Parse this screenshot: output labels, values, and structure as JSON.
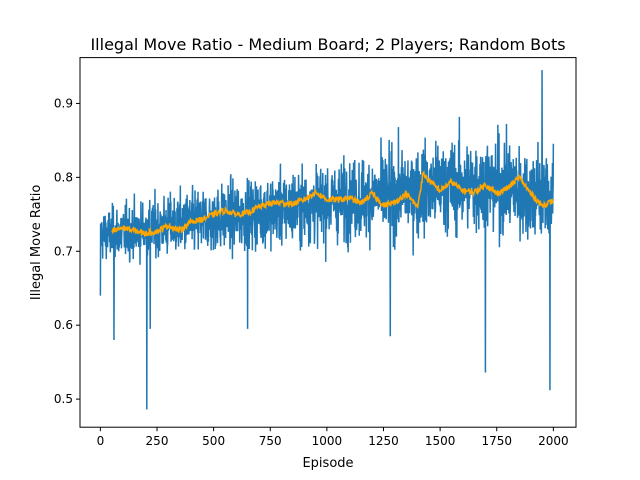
{
  "chart_data": {
    "type": "line",
    "title": "Illegal Move Ratio - Medium Board; 2 Players; Random Bots",
    "xlabel": "Episode",
    "ylabel": "Illegal Move Ratio",
    "xlim": [
      -90,
      2100
    ],
    "ylim": [
      0.462,
      0.962
    ],
    "xticks": [
      0,
      250,
      500,
      750,
      1000,
      1250,
      1500,
      1750,
      2000
    ],
    "yticks": [
      0.5,
      0.6,
      0.7,
      0.8,
      0.9
    ],
    "grid": false,
    "legend": "none",
    "colors": {
      "raw": "#1f77b4",
      "smoothed": "#ffa500"
    },
    "series": [
      {
        "key": "raw",
        "x_start": 0,
        "x_end": 2000,
        "points": 2001,
        "trend": [
          [
            0,
            0.722
          ],
          [
            250,
            0.732
          ],
          [
            500,
            0.743
          ],
          [
            750,
            0.755
          ],
          [
            1000,
            0.766
          ],
          [
            1250,
            0.776
          ],
          [
            1500,
            0.787
          ],
          [
            1750,
            0.79
          ],
          [
            2000,
            0.771
          ]
        ],
        "spread": [
          [
            0,
            0.03
          ],
          [
            250,
            0.035
          ],
          [
            500,
            0.04
          ],
          [
            750,
            0.043
          ],
          [
            1000,
            0.046
          ],
          [
            1250,
            0.05
          ],
          [
            1500,
            0.055
          ],
          [
            1750,
            0.058
          ],
          [
            2000,
            0.06
          ]
        ],
        "notable_points": [
          [
            0,
            0.64
          ],
          [
            60,
            0.58
          ],
          [
            205,
            0.486
          ],
          [
            220,
            0.595
          ],
          [
            650,
            0.595
          ],
          [
            1280,
            0.585
          ],
          [
            1700,
            0.536
          ],
          [
            1950,
            0.945
          ],
          [
            1985,
            0.512
          ]
        ]
      },
      {
        "key": "smoothed",
        "x": [
          50,
          100,
          150,
          200,
          250,
          300,
          350,
          400,
          450,
          500,
          550,
          600,
          650,
          700,
          750,
          800,
          850,
          900,
          950,
          1000,
          1050,
          1100,
          1150,
          1200,
          1250,
          1300,
          1350,
          1400,
          1425,
          1450,
          1500,
          1550,
          1600,
          1650,
          1700,
          1750,
          1800,
          1850,
          1900,
          1950,
          2000
        ],
        "y": [
          0.727,
          0.732,
          0.728,
          0.724,
          0.727,
          0.735,
          0.728,
          0.74,
          0.743,
          0.75,
          0.755,
          0.75,
          0.752,
          0.76,
          0.765,
          0.766,
          0.764,
          0.77,
          0.78,
          0.77,
          0.77,
          0.772,
          0.765,
          0.778,
          0.762,
          0.766,
          0.778,
          0.76,
          0.805,
          0.796,
          0.782,
          0.794,
          0.782,
          0.78,
          0.79,
          0.778,
          0.786,
          0.8,
          0.778,
          0.762,
          0.768
        ]
      }
    ]
  }
}
